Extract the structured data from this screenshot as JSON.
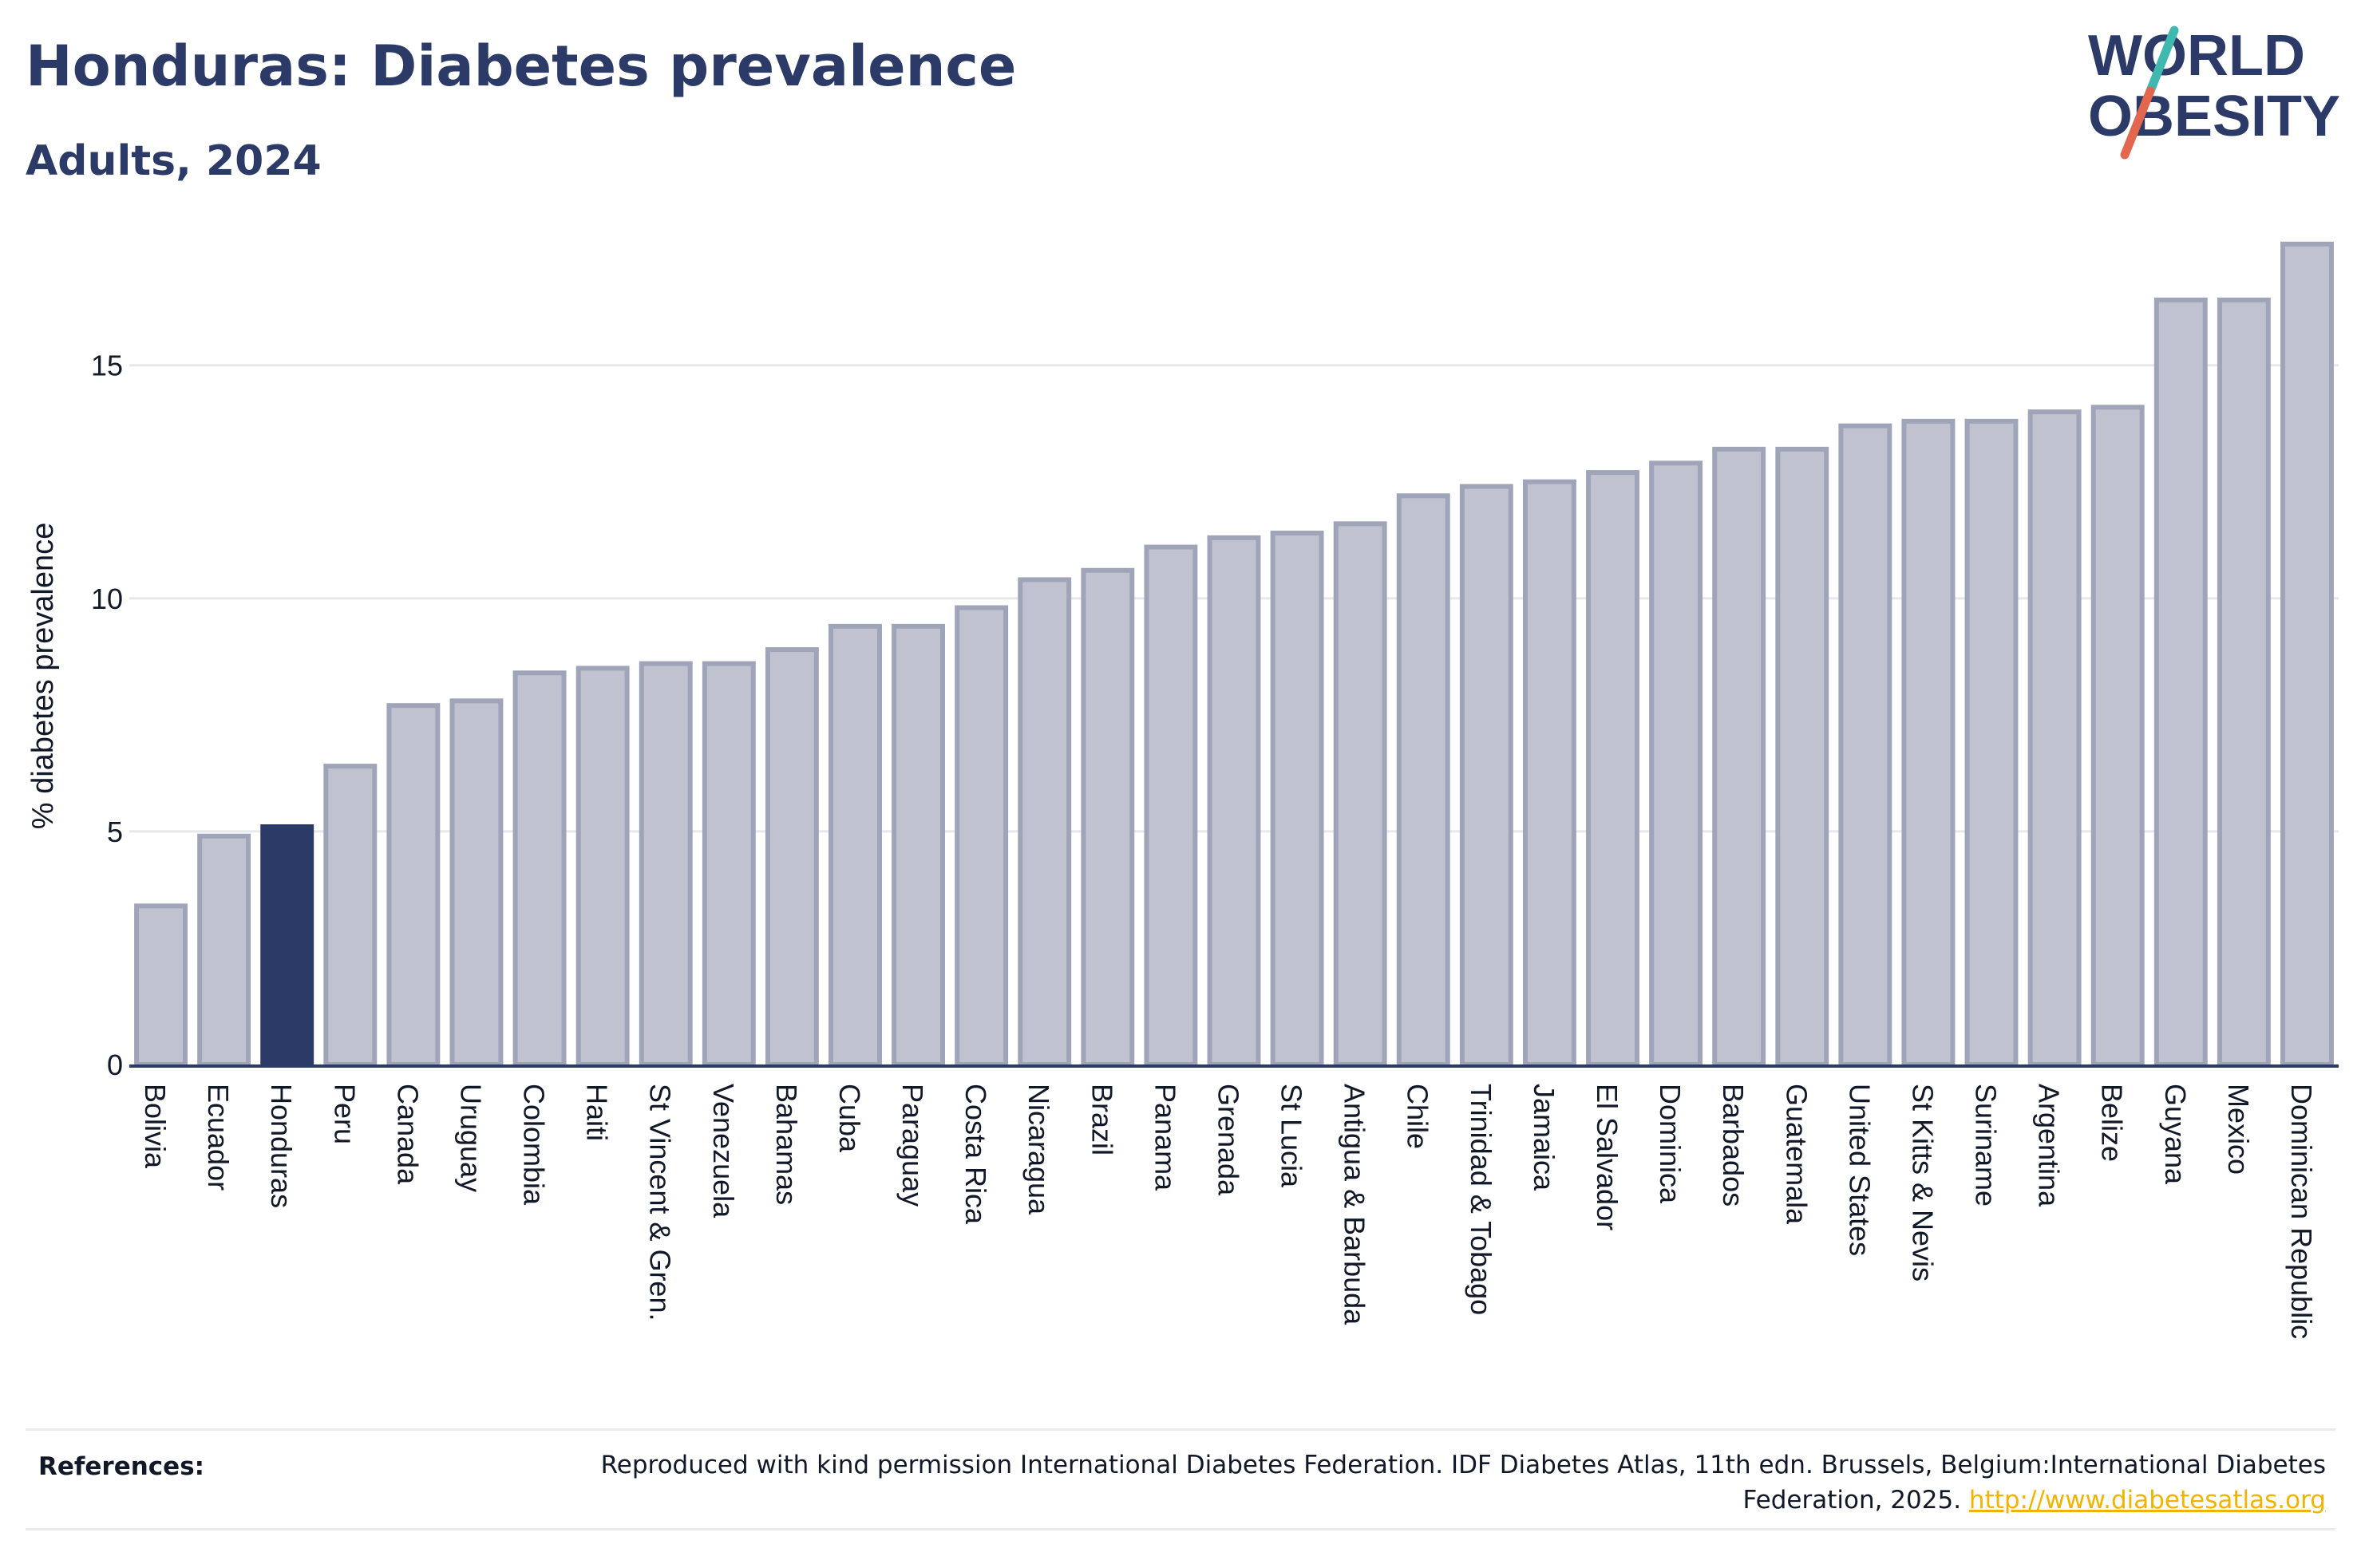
{
  "title": "Honduras: Diabetes prevalence",
  "subtitle": "Adults, 2024",
  "logo": {
    "line1": "WORLD",
    "line2": "OBESITY",
    "colors": {
      "text": "#2b3a67",
      "slash_top": "#3fb8b0",
      "slash_bottom": "#e3664f"
    }
  },
  "references": {
    "label": "References:",
    "text": "Reproduced with kind permission International Diabetes Federation. IDF Diabetes Atlas, 11th edn. Brussels, Belgium:International Diabetes Federation, 2025.",
    "link": "http://www.diabetesatlas.org"
  },
  "colors": {
    "bar": "#c0c3cf",
    "bar_stroke": "#9fa4b8",
    "highlight": "#2b3a67",
    "axis": "#2b3a67",
    "grid": "#e6e8ec"
  },
  "chart_data": {
    "type": "bar",
    "title": "Honduras: Diabetes prevalence",
    "subtitle": "Adults, 2024",
    "xlabel": "",
    "ylabel": "% diabetes prevalence",
    "ylim": [
      0,
      17.7
    ],
    "yticks": [
      0,
      5,
      10,
      15
    ],
    "grid": true,
    "highlight": "Honduras",
    "categories": [
      "Bolivia",
      "Ecuador",
      "Honduras",
      "Peru",
      "Canada",
      "Uruguay",
      "Colombia",
      "Haiti",
      "St Vincent & Gren.",
      "Venezuela",
      "Bahamas",
      "Cuba",
      "Paraguay",
      "Costa Rica",
      "Nicaragua",
      "Brazil",
      "Panama",
      "Grenada",
      "St Lucia",
      "Antigua & Barbuda",
      "Chile",
      "Trinidad & Tobago",
      "Jamaica",
      "El Salvador",
      "Dominica",
      "Barbados",
      "Guatemala",
      "United States",
      "St Kitts & Nevis",
      "Suriname",
      "Argentina",
      "Belize",
      "Guyana",
      "Mexico",
      "Dominican Republic"
    ],
    "values": [
      3.4,
      4.9,
      5.1,
      6.4,
      7.7,
      7.8,
      8.4,
      8.5,
      8.6,
      8.6,
      8.9,
      9.4,
      9.4,
      9.8,
      10.4,
      10.6,
      11.1,
      11.3,
      11.4,
      11.6,
      12.2,
      12.4,
      12.5,
      12.7,
      12.9,
      13.2,
      13.2,
      13.7,
      13.8,
      13.8,
      14.0,
      14.1,
      16.4,
      16.4,
      17.6
    ]
  }
}
